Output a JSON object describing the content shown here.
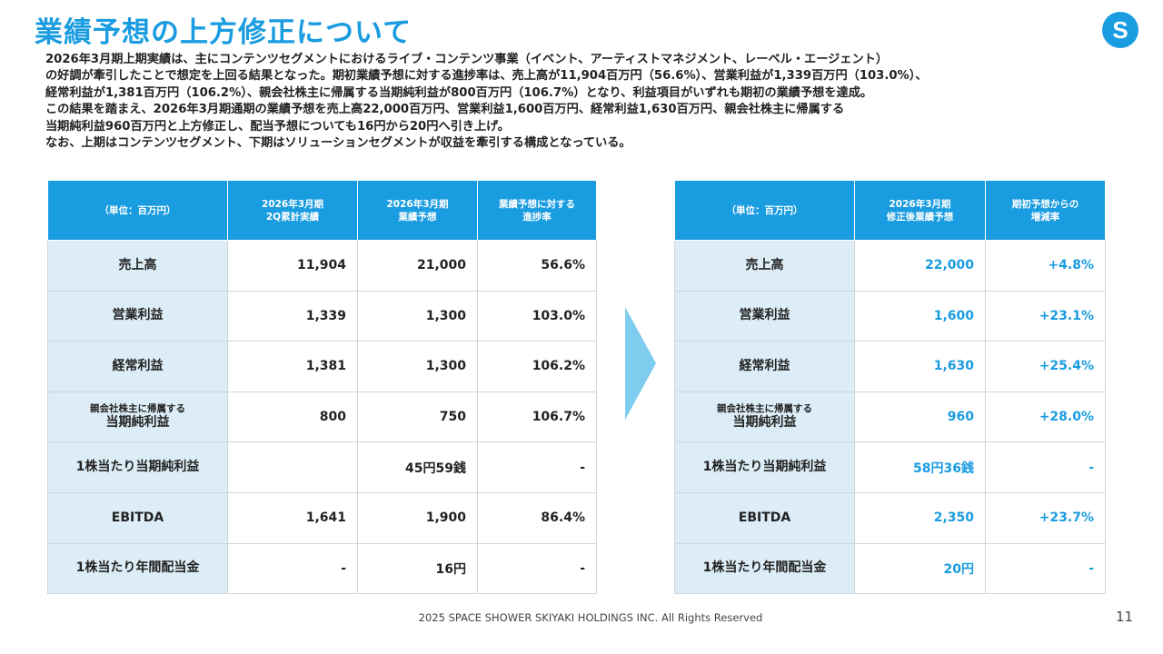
{
  "title": "業績予想の上方修正について",
  "logo_letter": "S",
  "colors": {
    "accent": "#1a9ce0",
    "label_bg": "#dcedf7",
    "arrow": "#7fcdee"
  },
  "body_lines": [
    "2026年3月期上期実績は、主にコンテンツセグメントにおけるライブ・コンテンツ事業（イベント、アーティストマネジメント、レーベル・エージェント）",
    "の好調が牽引したことで想定を上回る結果となった。期初業績予想に対する進捗率は、売上高が11,904百万円（56.6%）、営業利益が1,339百万円（103.0%）、",
    "経常利益が1,381百万円（106.2%）、親会社株主に帰属する当期純利益が800百万円（106.7%）となり、利益項目がいずれも期初の業績予想を達成。",
    "この結果を踏まえ、2026年3月期通期の業績予想を売上高22,000百万円、営業利益1,600百万円、経常利益1,630百万円、親会社株主に帰属する",
    "当期純利益960百万円と上方修正し、配当予想についても16円から20円へ引き上げ。",
    "なお、上期はコンテンツセグメント、下期はソリューションセグメントが収益を牽引する構成となっている。"
  ],
  "left_table": {
    "headers": [
      "（単位：百万円）",
      "2026年3月期\n2Q累計実績",
      "2026年3月期\n業績予想",
      "業績予想に対する\n進捗率"
    ],
    "rows": [
      {
        "label_small": "",
        "label": "売上高",
        "values": [
          "11,904",
          "21,000",
          "56.6%"
        ]
      },
      {
        "label_small": "",
        "label": "営業利益",
        "values": [
          "1,339",
          "1,300",
          "103.0%"
        ]
      },
      {
        "label_small": "",
        "label": "経常利益",
        "values": [
          "1,381",
          "1,300",
          "106.2%"
        ]
      },
      {
        "label_small": "親会社株主に帰属する",
        "label": "当期純利益",
        "values": [
          "800",
          "750",
          "106.7%"
        ]
      },
      {
        "label_small": "",
        "label": "1株当たり当期純利益",
        "values": [
          "",
          "45円59銭",
          "-"
        ]
      },
      {
        "label_small": "",
        "label": "EBITDA",
        "values": [
          "1,641",
          "1,900",
          "86.4%"
        ]
      },
      {
        "label_small": "",
        "label": "1株当たり年間配当金",
        "values": [
          "-",
          "16円",
          "-"
        ]
      }
    ]
  },
  "right_table": {
    "headers": [
      "（単位：百万円）",
      "2026年3月期\n修正後業績予想",
      "期初予想からの\n増減率"
    ],
    "rows": [
      {
        "label_small": "",
        "label": "売上高",
        "values": [
          "22,000",
          "+4.8%"
        ]
      },
      {
        "label_small": "",
        "label": "営業利益",
        "values": [
          "1,600",
          "+23.1%"
        ]
      },
      {
        "label_small": "",
        "label": "経常利益",
        "values": [
          "1,630",
          "+25.4%"
        ]
      },
      {
        "label_small": "親会社株主に帰属する",
        "label": "当期純利益",
        "values": [
          "960",
          "+28.0%"
        ]
      },
      {
        "label_small": "",
        "label": "1株当たり当期純利益",
        "values": [
          "58円36銭",
          "-"
        ]
      },
      {
        "label_small": "",
        "label": "EBITDA",
        "values": [
          "2,350",
          "+23.7%"
        ]
      },
      {
        "label_small": "",
        "label": "1株当たり年間配当金",
        "values": [
          "20円",
          "-"
        ]
      }
    ]
  },
  "footer": "2025 SPACE SHOWER SKIYAKI HOLDINGS INC. All Rights Reserved",
  "page_number": "11"
}
